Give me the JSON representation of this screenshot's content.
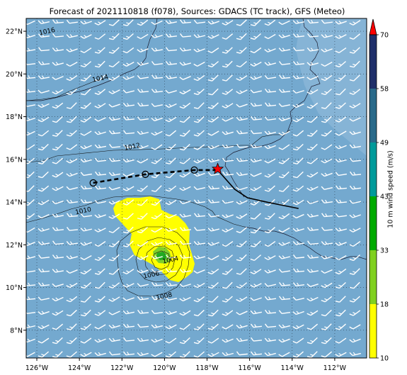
{
  "title": "Forecast of 2021110818 (f078), Sources: GDACS (TC track), GFS (Meteo)",
  "map": {
    "lon_range": [
      -126.5,
      -110.5
    ],
    "lat_range": [
      6.7,
      22.6
    ],
    "lon_ticks": [
      {
        "value": -126,
        "label": "126°W"
      },
      {
        "value": -124,
        "label": "124°W"
      },
      {
        "value": -122,
        "label": "122°W"
      },
      {
        "value": -120,
        "label": "120°W"
      },
      {
        "value": -118,
        "label": "118°W"
      },
      {
        "value": -116,
        "label": "116°W"
      },
      {
        "value": -114,
        "label": "114°W"
      },
      {
        "value": -112,
        "label": "112°W"
      }
    ],
    "lat_ticks": [
      {
        "value": 8,
        "label": "8°N"
      },
      {
        "value": 10,
        "label": "10°N"
      },
      {
        "value": 12,
        "label": "12°N"
      },
      {
        "value": 14,
        "label": "14°N"
      },
      {
        "value": 16,
        "label": "16°N"
      },
      {
        "value": 18,
        "label": "18°N"
      },
      {
        "value": 20,
        "label": "20°N"
      },
      {
        "value": 22,
        "label": "22°N"
      }
    ],
    "grid": "dotted",
    "ocean_color": "#74a9cf",
    "coast_color": "#1a1a2e"
  },
  "isobars": [
    {
      "label": "1016",
      "label_lon": -125.5,
      "label_lat": 21.9
    },
    {
      "label": "1014",
      "label_lon": -123.0,
      "label_lat": 19.7
    },
    {
      "label": "1012",
      "label_lon": -121.5,
      "label_lat": 16.5
    },
    {
      "label": "1010",
      "label_lon": -123.8,
      "label_lat": 13.5
    },
    {
      "label": "1008",
      "label_lon": -120.0,
      "label_lat": 9.5
    },
    {
      "label": "1006",
      "label_lon": -120.6,
      "label_lat": 10.5
    },
    {
      "label": "1004",
      "label_lon": -119.7,
      "label_lat": 11.2
    }
  ],
  "storm": {
    "forecast_track": [
      {
        "lon": -123.35,
        "lat": 14.9
      },
      {
        "lon": -120.9,
        "lat": 15.3
      },
      {
        "lon": -118.6,
        "lat": 15.5
      },
      {
        "lon": -117.5,
        "lat": 15.5
      }
    ],
    "past_track": [
      {
        "lon": -117.5,
        "lat": 15.5
      },
      {
        "lon": -116.7,
        "lat": 14.6
      },
      {
        "lon": -116.1,
        "lat": 14.2
      },
      {
        "lon": -115.2,
        "lat": 14.0
      },
      {
        "lon": -113.7,
        "lat": 13.7
      }
    ],
    "current_position": {
      "lon": -117.5,
      "lat": 15.55
    },
    "marker_color": "#ff0000"
  },
  "colorbar": {
    "label": "10 m wind speed (m/s)",
    "ticks": [
      "10",
      "18",
      "33",
      "43",
      "49",
      "58",
      "70"
    ],
    "colors": [
      "#ffff00",
      "#80d020",
      "#00aa00",
      "#009a9a",
      "#2a6a8a",
      "#1f2f6a",
      "#ff0000"
    ]
  }
}
